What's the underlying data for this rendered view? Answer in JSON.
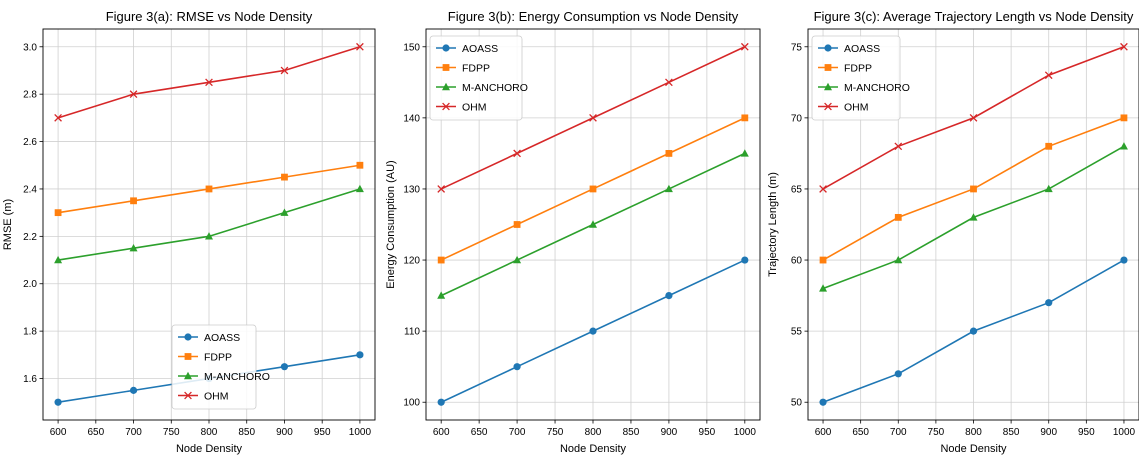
{
  "colors": {
    "AOASS": "#1f77b4",
    "FDPP": "#ff7f0e",
    "M-ANCHORO": "#2ca02c",
    "OHM": "#d62728"
  },
  "chart_data": [
    {
      "type": "line",
      "title": "Figure 3(a): RMSE vs Node Density",
      "xlabel": "Node Density",
      "ylabel": "RMSE (m)",
      "x": [
        600,
        700,
        800,
        900,
        1000
      ],
      "xticks": [
        600,
        650,
        700,
        750,
        800,
        850,
        900,
        950,
        1000
      ],
      "yticks": [
        1.6,
        1.8,
        2.0,
        2.2,
        2.4,
        2.6,
        2.8,
        3.0
      ],
      "ytick_labels": [
        "1.6",
        "1.8",
        "2.0",
        "2.2",
        "2.4",
        "2.6",
        "2.8",
        "3.0"
      ],
      "xlim": [
        580,
        1020
      ],
      "ylim": [
        1.425,
        3.075
      ],
      "grid": true,
      "legend_position": "lower-center",
      "series": [
        {
          "name": "AOASS",
          "marker": "circle",
          "values": [
            1.5,
            1.55,
            1.6,
            1.65,
            1.7
          ]
        },
        {
          "name": "FDPP",
          "marker": "square",
          "values": [
            2.3,
            2.35,
            2.4,
            2.45,
            2.5
          ]
        },
        {
          "name": "M-ANCHORO",
          "marker": "triangle",
          "values": [
            2.1,
            2.15,
            2.2,
            2.3,
            2.4
          ]
        },
        {
          "name": "OHM",
          "marker": "x",
          "values": [
            2.7,
            2.8,
            2.85,
            2.9,
            3.0
          ]
        }
      ]
    },
    {
      "type": "line",
      "title": "Figure 3(b): Energy Consumption vs Node Density",
      "xlabel": "Node Density",
      "ylabel": "Energy Consumption (AU)",
      "x": [
        600,
        700,
        800,
        900,
        1000
      ],
      "xticks": [
        600,
        650,
        700,
        750,
        800,
        850,
        900,
        950,
        1000
      ],
      "yticks": [
        100,
        110,
        120,
        130,
        140,
        150
      ],
      "ytick_labels": [
        "100",
        "110",
        "120",
        "130",
        "140",
        "150"
      ],
      "xlim": [
        580,
        1020
      ],
      "ylim": [
        97.5,
        152.5
      ],
      "grid": true,
      "legend_position": "top-left",
      "series": [
        {
          "name": "AOASS",
          "marker": "circle",
          "values": [
            100,
            105,
            110,
            115,
            120
          ]
        },
        {
          "name": "FDPP",
          "marker": "square",
          "values": [
            120,
            125,
            130,
            135,
            140
          ]
        },
        {
          "name": "M-ANCHORO",
          "marker": "triangle",
          "values": [
            115,
            120,
            125,
            130,
            135
          ]
        },
        {
          "name": "OHM",
          "marker": "x",
          "values": [
            130,
            135,
            140,
            145,
            150
          ]
        }
      ]
    },
    {
      "type": "line",
      "title": "Figure 3(c): Average Trajectory Length vs Node Density",
      "xlabel": "Node Density",
      "ylabel": "Trajectory Length (m)",
      "x": [
        600,
        700,
        800,
        900,
        1000
      ],
      "xticks": [
        600,
        650,
        700,
        750,
        800,
        850,
        900,
        950,
        1000
      ],
      "yticks": [
        50,
        55,
        60,
        65,
        70,
        75
      ],
      "ytick_labels": [
        "50",
        "55",
        "60",
        "65",
        "70",
        "75"
      ],
      "xlim": [
        580,
        1020
      ],
      "ylim": [
        48.75,
        76.25
      ],
      "grid": true,
      "legend_position": "top-left",
      "series": [
        {
          "name": "AOASS",
          "marker": "circle",
          "values": [
            50,
            52,
            55,
            57,
            60
          ]
        },
        {
          "name": "FDPP",
          "marker": "square",
          "values": [
            60,
            63,
            65,
            68,
            70
          ]
        },
        {
          "name": "M-ANCHORO",
          "marker": "triangle",
          "values": [
            58,
            60,
            63,
            65,
            68
          ]
        },
        {
          "name": "OHM",
          "marker": "x",
          "values": [
            65,
            68,
            70,
            73,
            75
          ]
        }
      ]
    }
  ]
}
